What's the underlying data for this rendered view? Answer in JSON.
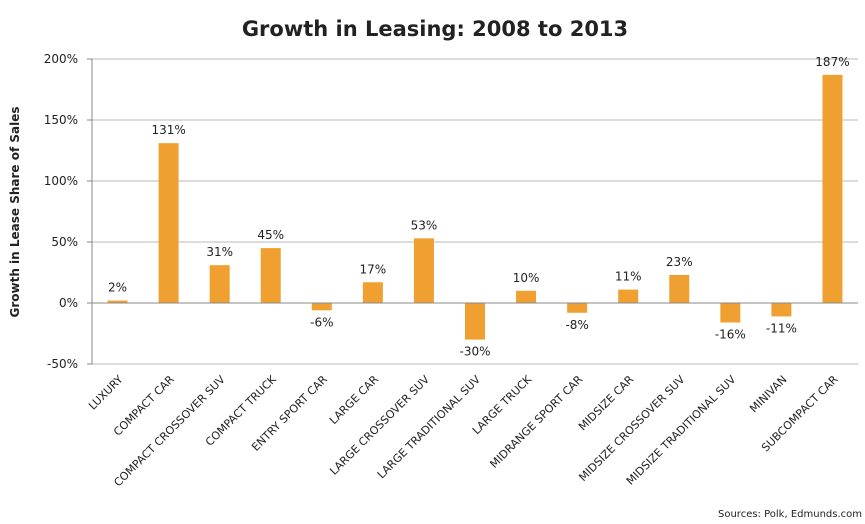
{
  "chart_data": {
    "type": "bar",
    "title": "Growth in Leasing: 2008 to 2013",
    "xlabel": "",
    "ylabel": "Growth in Lease Share of Sales",
    "ylim": [
      -50,
      200
    ],
    "yticks": [
      -50,
      0,
      50,
      100,
      150,
      200
    ],
    "ytick_labels": [
      "-50%",
      "0%",
      "50%",
      "100%",
      "150%",
      "200%"
    ],
    "grid": true,
    "bar_color": "#F0A030",
    "categories": [
      "LUXURY",
      "COMPACT CAR",
      "COMPACT CROSSOVER SUV",
      "COMPACT TRUCK",
      "ENTRY SPORT CAR",
      "LARGE CAR",
      "LARGE CROSSOVER SUV",
      "LARGE TRADITIONAL SUV",
      "LARGE TRUCK",
      "MIDRANGE SPORT CAR",
      "MIDSIZE CAR",
      "MIDSIZE CROSSOVER SUV",
      "MIDSIZE TRADITIONAL SUV",
      "MINIVAN",
      "SUBCOMPACT CAR"
    ],
    "values": [
      2,
      131,
      31,
      45,
      -6,
      17,
      53,
      -30,
      10,
      -8,
      11,
      23,
      -16,
      -11,
      187
    ],
    "data_labels": [
      "2%",
      "131%",
      "31%",
      "45%",
      "-6%",
      "17%",
      "53%",
      "-30%",
      "10%",
      "-8%",
      "11%",
      "23%",
      "-16%",
      "-11%",
      "187%"
    ],
    "source": "Sources: Polk, Edmunds.com"
  }
}
